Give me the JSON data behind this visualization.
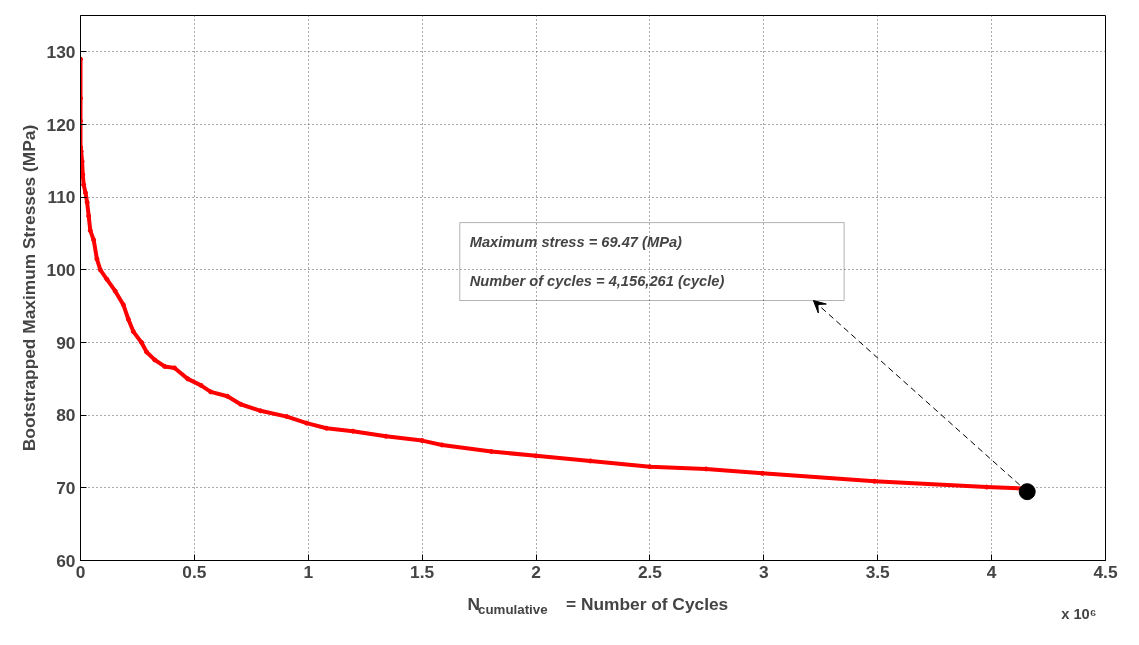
{
  "chart_data": {
    "type": "line",
    "xlabel": "N$_{cumulative}$ = Number of Cycles",
    "ylabel": "Bootstrapped Maximum Stresses (MPa)",
    "xlim": [
      0,
      4.5
    ],
    "ylim": [
      60,
      135
    ],
    "xticks": [
      0,
      0.5,
      1,
      1.5,
      2,
      2.5,
      3,
      3.5,
      4,
      4.5
    ],
    "yticks": [
      60,
      70,
      80,
      90,
      100,
      110,
      120,
      130
    ],
    "grid": true,
    "line_style": "solid",
    "series": [
      {
        "marker": "circle",
        "color": "#ff0000",
        "x": [
          0,
          0,
          0,
          0,
          0.003,
          0.007,
          0.01,
          0.014,
          0.022,
          0.029,
          0.036,
          0.043,
          0.058,
          0.072,
          0.087,
          0.116,
          0.152,
          0.188,
          0.21,
          0.232,
          0.268,
          0.29,
          0.326,
          0.37,
          0.413,
          0.471,
          0.529,
          0.572,
          0.645,
          0.703,
          0.79,
          0.906,
          0.993,
          1.08,
          1.196,
          1.341,
          1.5,
          1.587,
          1.804,
          2.0,
          2.239,
          2.5,
          2.746,
          2.993,
          3.486,
          3.978,
          4.144
        ],
        "values": [
          129.0,
          123.6,
          120.5,
          116.9,
          116.3,
          114.9,
          113.1,
          111.7,
          110.6,
          109.3,
          107.4,
          105.4,
          104.1,
          101.5,
          100.0,
          98.7,
          97.1,
          95.2,
          93.2,
          91.5,
          90.0,
          88.7,
          87.6,
          86.7,
          86.5,
          85.0,
          84.1,
          83.2,
          82.6,
          81.5,
          80.6,
          79.8,
          78.9,
          78.2,
          77.8,
          77.1,
          76.5,
          75.9,
          75.0,
          74.4,
          73.7,
          72.9,
          72.6,
          72.0,
          70.9,
          70.1,
          69.9
        ]
      },
      {
        "type": "scatter",
        "marker": "circle",
        "color": "#000000",
        "x": [
          4.156261
        ],
        "values": [
          69.47
        ]
      }
    ],
    "annotations": [
      "Maximum stress = 69.47 (MPa)",
      "Number of cycles = 4,156,261 (cycle)",
      "x 10⁶"
    ]
  }
}
